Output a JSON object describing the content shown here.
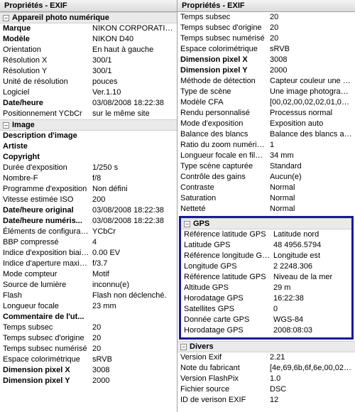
{
  "panel_title": "Propriétés - EXIF",
  "left": {
    "sections": [
      {
        "title": "Appareil photo numérique",
        "rows": [
          {
            "label": "Marque",
            "value": "NIKON CORPORATION",
            "bold": true
          },
          {
            "label": "Modèle",
            "value": "NIKON D40",
            "bold": true
          },
          {
            "label": "Orientation",
            "value": "En haut à gauche"
          },
          {
            "label": "Résolution X",
            "value": "300/1"
          },
          {
            "label": "Résolution Y",
            "value": "300/1"
          },
          {
            "label": "Unité de résolution",
            "value": "pouces"
          },
          {
            "label": "Logiciel",
            "value": "Ver.1.10"
          },
          {
            "label": "Date/heure",
            "value": "03/08/2008 18:22:38",
            "bold": true
          },
          {
            "label": "Positionnement YCbCr",
            "value": "sur le même site"
          }
        ]
      },
      {
        "title": "Image",
        "rows": [
          {
            "label": "Description d'image",
            "value": "",
            "bold": true
          },
          {
            "label": "Artiste",
            "value": "",
            "bold": true
          },
          {
            "label": "Copyright",
            "value": "",
            "bold": true
          },
          {
            "label": "Durée d'exposition",
            "value": "1/250 s"
          },
          {
            "label": "Nombre-F",
            "value": "f/8"
          },
          {
            "label": "Programme d'exposition",
            "value": "Non défini"
          },
          {
            "label": "Vitesse estimée ISO",
            "value": "200"
          },
          {
            "label": "Date/heure original",
            "value": "03/08/2008 18:22:38",
            "bold": true
          },
          {
            "label": "Date/heure numéris...",
            "value": "03/08/2008 18:22:38",
            "bold": true
          },
          {
            "label": "Éléments de configuration",
            "value": "YCbCr"
          },
          {
            "label": "BBP compressé",
            "value": "4"
          },
          {
            "label": "Indice d'exposition biaisée",
            "value": "0.00 EV"
          },
          {
            "label": "Indice d'aperture maximum",
            "value": "f/3.7"
          },
          {
            "label": "Mode compteur",
            "value": "Motif"
          },
          {
            "label": "Source de lumière",
            "value": "inconnu(e)"
          },
          {
            "label": "Flash",
            "value": "Flash non déclenché."
          },
          {
            "label": "Longueur focale",
            "value": "23 mm"
          },
          {
            "label": "Commentaire de l'ut...",
            "value": "",
            "bold": true
          },
          {
            "label": "Temps subsec",
            "value": "20"
          },
          {
            "label": "Temps subsec d'origine",
            "value": "20"
          },
          {
            "label": "Temps subsec numérisé",
            "value": "20"
          },
          {
            "label": "Espace colorimétrique",
            "value": "sRVB"
          },
          {
            "label": "Dimension pixel X",
            "value": "3008",
            "bold": true
          },
          {
            "label": "Dimension pixel Y",
            "value": "2000",
            "bold": true
          }
        ]
      }
    ]
  },
  "right_pre": [
    {
      "label": "Temps subsec",
      "value": "20"
    },
    {
      "label": "Temps subsec d'origine",
      "value": "20"
    },
    {
      "label": "Temps subsec numérisé",
      "value": "20"
    },
    {
      "label": "Espace colorimétrique",
      "value": "sRVB"
    },
    {
      "label": "Dimension pixel X",
      "value": "3008",
      "bold": true
    },
    {
      "label": "Dimension pixel Y",
      "value": "2000",
      "bold": true
    },
    {
      "label": "Méthode de détection",
      "value": "Capteur couleur une puce"
    },
    {
      "label": "Type de scène",
      "value": "Une image photographi..."
    },
    {
      "label": "Modèle CFA",
      "value": "[00,02,00,02,02,01,01,00]"
    },
    {
      "label": "Rendu personnalisé",
      "value": "Processus normal"
    },
    {
      "label": "Mode d'exposition",
      "value": "Exposition auto"
    },
    {
      "label": "Balance des blancs",
      "value": "Balance des blancs auto"
    },
    {
      "label": "Ratio du zoom numérique",
      "value": "1"
    },
    {
      "label": "Longueur focale en film ...",
      "value": "34 mm"
    },
    {
      "label": "Type scène capturée",
      "value": "Standard"
    },
    {
      "label": "Contrôle des gains",
      "value": "Aucun(e)"
    },
    {
      "label": "Contraste",
      "value": "Normal"
    },
    {
      "label": "Saturation",
      "value": "Normal"
    },
    {
      "label": "Netteté",
      "value": "Normal"
    }
  ],
  "gps": {
    "title": "GPS",
    "rows": [
      {
        "label": "Référence latitude GPS",
        "value": "Latitude nord"
      },
      {
        "label": "Latitude GPS",
        "value": "48 4956.5794"
      },
      {
        "label": "Référence longitude GPS",
        "value": "Longitude est"
      },
      {
        "label": "Longitude GPS",
        "value": "2 2248.306"
      },
      {
        "label": "Référence latitude GPS",
        "value": "Niveau de la mer"
      },
      {
        "label": "Altitude GPS",
        "value": "29 m"
      },
      {
        "label": "Horodatage GPS",
        "value": "16:22:38"
      },
      {
        "label": "Satellites GPS",
        "value": "0"
      },
      {
        "label": "Donnée carte GPS",
        "value": "WGS-84"
      },
      {
        "label": "Horodatage GPS",
        "value": "2008:08:03"
      }
    ]
  },
  "divers": {
    "title": "Divers",
    "rows": [
      {
        "label": "Version Exif",
        "value": "2.21"
      },
      {
        "label": "Note du fabricant",
        "value": "[4e,69,6b,6f,6e,00,02,1..."
      },
      {
        "label": "Version FlashPix",
        "value": "1.0"
      },
      {
        "label": "Fichier source",
        "value": "DSC"
      },
      {
        "label": "ID de verison EXIF",
        "value": "12"
      }
    ]
  }
}
